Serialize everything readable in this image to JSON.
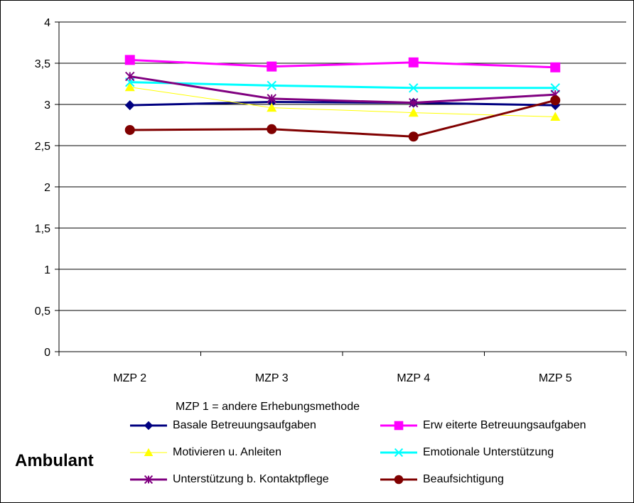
{
  "chart_data": {
    "type": "line",
    "categories": [
      "MZP 2",
      "MZP 3",
      "MZP 4",
      "MZP 5"
    ],
    "ylim": [
      0,
      4
    ],
    "y_ticks": [
      "0",
      "0,5",
      "1",
      "1,5",
      "2",
      "2,5",
      "3",
      "3,5",
      "4"
    ],
    "grid": "horizontal",
    "legend_position": "bottom",
    "note": "MZP 1 = andere Erhebungsmethode",
    "side_label": "Ambulant",
    "series": [
      {
        "name": "Basale Betreuungsaufgaben",
        "values": [
          2.99,
          3.03,
          3.02,
          2.99
        ],
        "color": "#000080",
        "marker": "diamond",
        "width": 3
      },
      {
        "name": "Erw eiterte Betreuungsaufgaben",
        "values": [
          3.54,
          3.46,
          3.51,
          3.45
        ],
        "color": "#ff00ff",
        "marker": "square",
        "width": 3
      },
      {
        "name": "Motivieren u. Anleiten",
        "values": [
          3.21,
          2.96,
          2.9,
          2.85
        ],
        "color": "#ffff00",
        "marker": "triangle",
        "width": 1
      },
      {
        "name": "Emotionale Unterstützung",
        "values": [
          3.27,
          3.23,
          3.2,
          3.2
        ],
        "color": "#00ffff",
        "marker": "x",
        "width": 3
      },
      {
        "name": "Unterstützung b. Kontaktpflege",
        "values": [
          3.34,
          3.07,
          3.02,
          3.12
        ],
        "color": "#800080",
        "marker": "star",
        "width": 3
      },
      {
        "name": "Beaufsichtigung",
        "values": [
          2.69,
          2.7,
          2.61,
          3.05
        ],
        "color": "#800000",
        "marker": "circle",
        "width": 3
      }
    ]
  }
}
